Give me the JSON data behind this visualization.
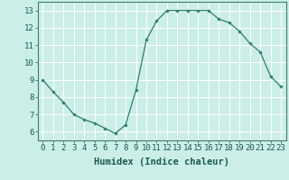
{
  "x": [
    0,
    1,
    2,
    3,
    4,
    5,
    6,
    7,
    8,
    9,
    10,
    11,
    12,
    13,
    14,
    15,
    16,
    17,
    18,
    19,
    20,
    21,
    22,
    23
  ],
  "y": [
    9.0,
    8.3,
    7.7,
    7.0,
    6.7,
    6.5,
    6.2,
    5.9,
    6.4,
    8.4,
    11.3,
    12.4,
    13.0,
    13.0,
    13.0,
    13.0,
    13.0,
    12.5,
    12.3,
    11.8,
    11.1,
    10.6,
    9.2,
    8.6
  ],
  "xlabel": "Humidex (Indice chaleur)",
  "xlim": [
    -0.5,
    23.5
  ],
  "ylim": [
    5.5,
    13.5
  ],
  "yticks": [
    6,
    7,
    8,
    9,
    10,
    11,
    12,
    13
  ],
  "xticks": [
    0,
    1,
    2,
    3,
    4,
    5,
    6,
    7,
    8,
    9,
    10,
    11,
    12,
    13,
    14,
    15,
    16,
    17,
    18,
    19,
    20,
    21,
    22,
    23
  ],
  "line_color": "#2e7d6e",
  "marker": "D",
  "marker_size": 1.8,
  "bg_color": "#cceee8",
  "grid_color": "#ffffff",
  "grid_minor_color": "#ddf5f0",
  "xlabel_fontsize": 7.5,
  "tick_fontsize": 6.5,
  "spine_color": "#3d7a70"
}
